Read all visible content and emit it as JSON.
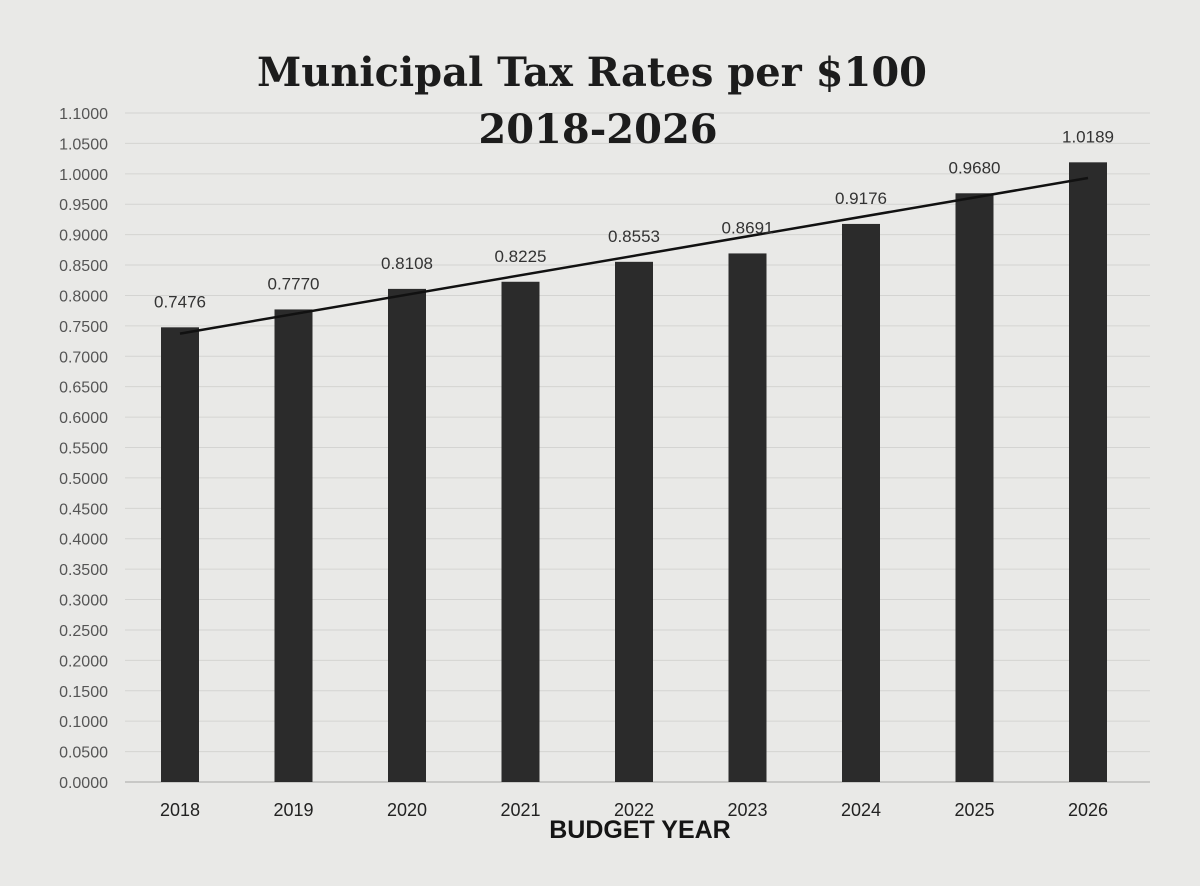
{
  "chart_data": {
    "type": "bar",
    "title": "Municipal Tax Rates per $100",
    "subtitle": "2018-2026",
    "xlabel": "BUDGET YEAR",
    "ylabel": "",
    "ylim": [
      0,
      1.1
    ],
    "ytick_step": 0.05,
    "yticks": [
      "0.0000",
      "0.0500",
      "0.1000",
      "0.1500",
      "0.2000",
      "0.2500",
      "0.3000",
      "0.3500",
      "0.4000",
      "0.4500",
      "0.5000",
      "0.5500",
      "0.6000",
      "0.6500",
      "0.7000",
      "0.7500",
      "0.8000",
      "0.8500",
      "0.9000",
      "0.9500",
      "1.0000",
      "1.0500",
      "1.1000"
    ],
    "categories": [
      "2018",
      "2019",
      "2020",
      "2021",
      "2022",
      "2023",
      "2024",
      "2025",
      "2026"
    ],
    "values": [
      0.7476,
      0.777,
      0.8108,
      0.8225,
      0.8553,
      0.8691,
      0.9176,
      0.968,
      1.0189
    ],
    "value_labels": [
      "0.7476",
      "0.7770",
      "0.8108",
      "0.8225",
      "0.8553",
      "0.8691",
      "0.9176",
      "0.9680",
      "1.0189"
    ],
    "grid": true,
    "trendline": true,
    "legend": "none",
    "colors": {
      "bar": "#2b2b2b",
      "line": "#111111",
      "grid": "#d4d4d2",
      "background": "#e9e9e7"
    }
  }
}
